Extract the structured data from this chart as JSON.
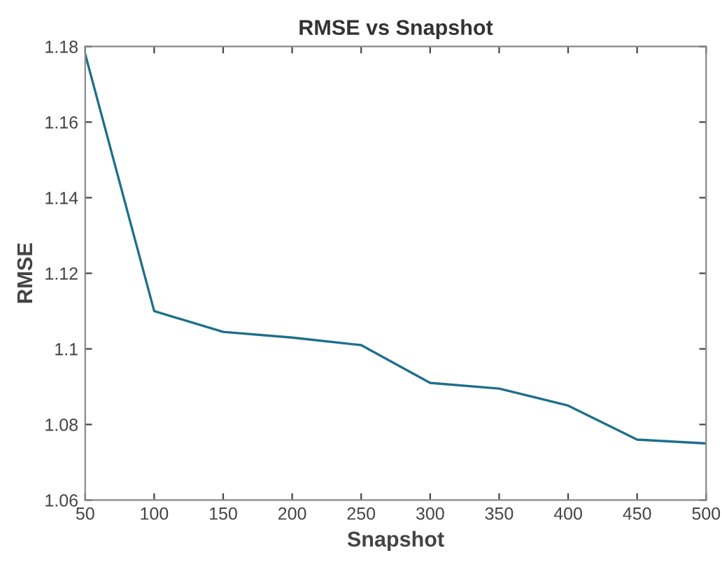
{
  "chart_data": {
    "type": "line",
    "title": "RMSE vs Snapshot",
    "xlabel": "Snapshot",
    "ylabel": "RMSE",
    "x": [
      50,
      100,
      150,
      200,
      250,
      300,
      350,
      400,
      450,
      500
    ],
    "series": [
      {
        "color": "#1f6f8b",
        "values": [
          1.178,
          1.11,
          1.1045,
          1.103,
          1.101,
          1.091,
          1.0895,
          1.085,
          1.076,
          1.075
        ]
      }
    ],
    "xlim": [
      50,
      500
    ],
    "xticks": [
      50,
      100,
      150,
      200,
      250,
      300,
      350,
      400,
      450,
      500
    ],
    "ylim": [
      1.06,
      1.18
    ],
    "yticks": [
      1.06,
      1.08,
      1.1,
      1.12,
      1.14,
      1.16,
      1.18
    ],
    "grid": false,
    "legend": false,
    "marker": "none",
    "line_style": "solid"
  }
}
